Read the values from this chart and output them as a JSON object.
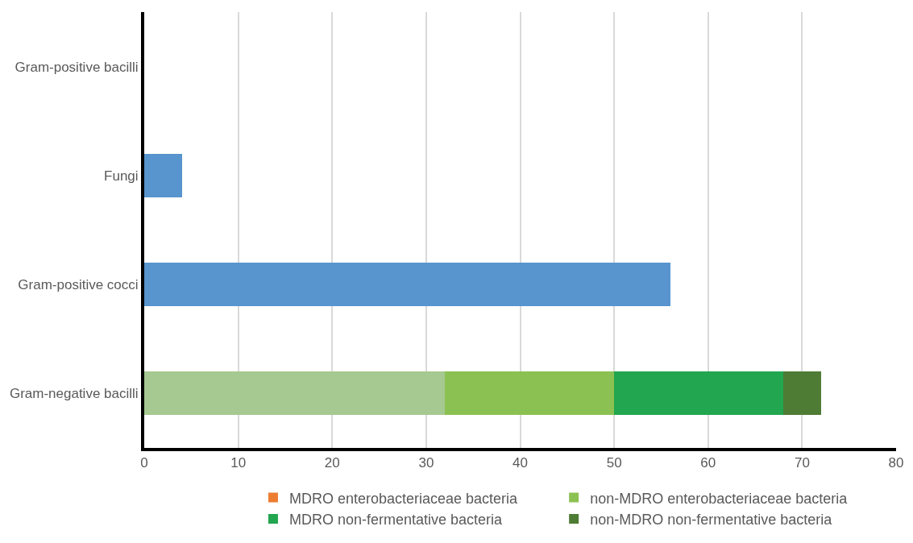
{
  "chart_data": {
    "type": "bar",
    "orientation": "horizontal",
    "stacked": true,
    "categories": [
      "Gram-positive bacilli",
      "Fungi",
      "Gram-positive cocci",
      "Gram-negative bacilli"
    ],
    "series": [
      {
        "color": "#a5c990",
        "values": [
          null,
          null,
          null,
          32
        ]
      },
      {
        "name": "MDRO enterobacteriaceae bacteria",
        "color": "#ed7d31",
        "values": [
          null,
          null,
          null,
          null
        ]
      },
      {
        "name": "non-MDRO enterobacteriaceae bacteria",
        "color": "#8bc152",
        "values": [
          null,
          null,
          null,
          18
        ]
      },
      {
        "name": "MDRO non-fermentative bacteria",
        "color": "#22a64f",
        "values": [
          null,
          null,
          null,
          18
        ]
      },
      {
        "name": "non-MDRO non-fermentative bacteria",
        "color": "#4e7c34",
        "values": [
          null,
          null,
          null,
          4
        ]
      },
      {
        "color": "#5894cd",
        "values": [
          0,
          4,
          56,
          null
        ]
      }
    ],
    "xlim": [
      0,
      80
    ],
    "xticks": [
      0,
      10,
      20,
      30,
      40,
      50,
      60,
      70,
      80
    ],
    "grid": "x",
    "legend": "bottom"
  }
}
